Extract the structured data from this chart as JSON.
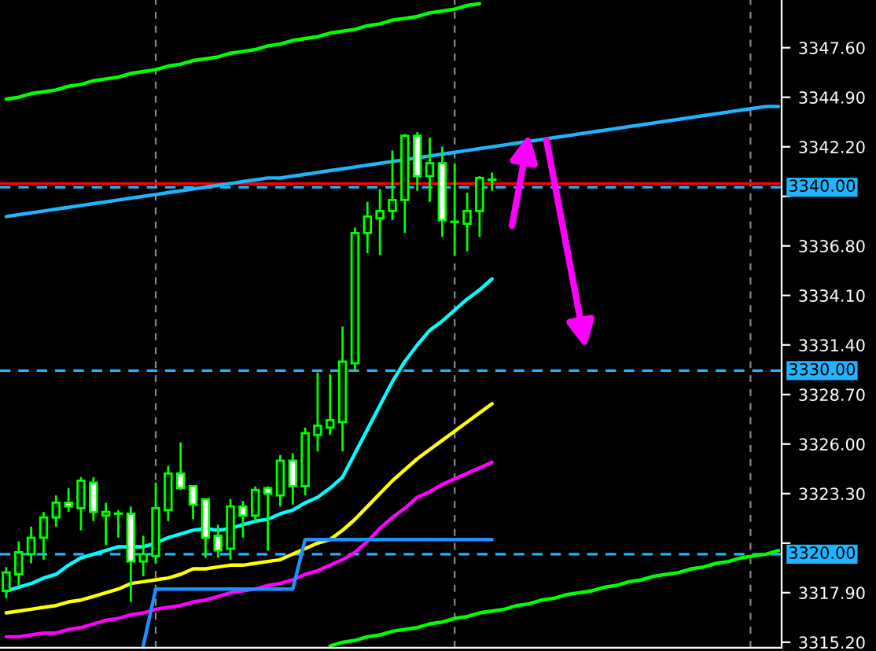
{
  "chart_data": {
    "type": "candlestick",
    "categories": [
      null,
      null,
      null,
      null,
      null,
      null,
      null,
      null,
      null,
      null,
      null,
      null,
      null,
      null,
      null,
      null,
      null,
      null,
      null,
      null,
      null,
      null,
      null,
      null,
      null,
      null,
      null,
      null,
      null,
      null,
      null,
      null,
      null,
      null,
      null,
      null,
      null,
      null,
      null,
      null,
      null,
      null,
      null,
      null,
      null,
      null,
      null,
      null,
      null,
      null,
      null,
      null,
      null,
      null,
      null,
      null,
      null,
      null,
      null,
      null,
      null,
      null,
      null
    ],
    "ohlc": [
      [
        3318.0,
        3319.3,
        3317.6,
        3319.0
      ],
      [
        3318.9,
        3320.7,
        3318.3,
        3320.1
      ],
      [
        3320.0,
        3321.5,
        3319.5,
        3320.9
      ],
      [
        3320.9,
        3322.3,
        3319.7,
        3322.0
      ],
      [
        3322.0,
        3323.2,
        3321.5,
        3322.8
      ],
      [
        3322.8,
        3323.6,
        3322.3,
        3322.6
      ],
      [
        3322.5,
        3324.2,
        3321.3,
        3324.0
      ],
      [
        3323.9,
        3324.2,
        3321.8,
        3322.3
      ],
      [
        3322.1,
        3322.8,
        3320.5,
        3322.3
      ],
      [
        3322.2,
        3322.4,
        3320.9,
        3322.2
      ],
      [
        3322.2,
        3322.6,
        3317.4,
        3319.6
      ],
      [
        3319.6,
        3321.0,
        3318.8,
        3320.0
      ],
      [
        3319.9,
        3323.9,
        3319.5,
        3322.5
      ],
      [
        3322.4,
        3324.8,
        3321.8,
        3324.4
      ],
      [
        3324.4,
        3326.1,
        3323.5,
        3323.6
      ],
      [
        3323.7,
        3323.7,
        3321.9,
        3322.7
      ],
      [
        3323.0,
        3323.0,
        3319.8,
        3320.9
      ],
      [
        3321.0,
        3321.6,
        3319.8,
        3320.2
      ],
      [
        3320.3,
        3323.0,
        3319.7,
        3322.6
      ],
      [
        3322.6,
        3322.9,
        3320.9,
        3322.1
      ],
      [
        3322.1,
        3323.7,
        3321.8,
        3323.5
      ],
      [
        3323.6,
        3323.7,
        3320.2,
        3323.3
      ],
      [
        3323.2,
        3325.4,
        3322.6,
        3325.1
      ],
      [
        3325.1,
        3325.5,
        3322.7,
        3323.7
      ],
      [
        3323.7,
        3326.9,
        3323.2,
        3326.6
      ],
      [
        3326.5,
        3329.9,
        3325.6,
        3327.0
      ],
      [
        3326.9,
        3329.8,
        3326.5,
        3327.3
      ],
      [
        3327.2,
        3332.4,
        3325.6,
        3330.5
      ],
      [
        3330.4,
        3337.8,
        3330.0,
        3337.5
      ],
      [
        3337.5,
        3339.2,
        3336.4,
        3338.4
      ],
      [
        3338.3,
        3339.9,
        3336.3,
        3338.7
      ],
      [
        3338.7,
        3342.0,
        3338.2,
        3339.3
      ],
      [
        3339.3,
        3342.9,
        3337.5,
        3342.8
      ],
      [
        3342.8,
        3343.0,
        3339.8,
        3340.6
      ],
      [
        3340.6,
        3342.7,
        3339.2,
        3341.3
      ],
      [
        3341.3,
        3342.2,
        3337.3,
        3338.2
      ],
      [
        3338.1,
        3341.3,
        3336.3,
        3338.1
      ],
      [
        3338.0,
        3339.7,
        3336.5,
        3338.7
      ],
      [
        3338.7,
        3340.6,
        3337.3,
        3340.5
      ],
      [
        3340.4,
        3340.8,
        3339.8,
        3340.4
      ],
      null,
      null,
      null,
      null,
      null,
      null,
      null,
      null,
      null,
      null,
      null,
      null,
      null,
      null,
      null,
      null,
      null,
      null,
      null,
      null,
      null,
      null,
      null
    ],
    "series": [
      {
        "type": "line",
        "color": "#00ff00",
        "values": [
          3344.8,
          3344.9,
          3345.1,
          3345.2,
          3345.3,
          3345.5,
          3345.6,
          3345.8,
          3345.9,
          3346.0,
          3346.2,
          3346.3,
          3346.4,
          3346.6,
          3346.7,
          3346.9,
          3347.0,
          3347.1,
          3347.3,
          3347.4,
          3347.5,
          3347.7,
          3347.8,
          3348.0,
          3348.1,
          3348.2,
          3348.4,
          3348.5,
          3348.6,
          3348.8,
          3348.9,
          3349.1,
          3349.2,
          3349.3,
          3349.5,
          3349.6,
          3349.7,
          3349.9,
          3350.0,
          null,
          null,
          null,
          null,
          null,
          null,
          null,
          null,
          null,
          null,
          null,
          null,
          null,
          null,
          null,
          null,
          null,
          null,
          null,
          null,
          null,
          null,
          null,
          null
        ]
      },
      {
        "type": "line",
        "color": "#1eb4ff",
        "values": [
          3338.4,
          3338.5,
          3338.6,
          3338.7,
          3338.8,
          3338.9,
          3339.0,
          3339.1,
          3339.2,
          3339.3,
          3339.4,
          3339.5,
          3339.6,
          3339.7,
          3339.8,
          3339.9,
          3340.0,
          3340.1,
          3340.2,
          3340.3,
          3340.4,
          3340.5,
          3340.5,
          3340.6,
          3340.7,
          3340.8,
          3340.9,
          3341.0,
          3341.1,
          3341.2,
          3341.3,
          3341.4,
          3341.5,
          3341.6,
          3341.7,
          3341.8,
          3341.9,
          3342.0,
          3342.1,
          3342.2,
          3342.3,
          3342.4,
          3342.5,
          3342.6,
          3342.7,
          3342.8,
          3342.9,
          3343.0,
          3343.1,
          3343.2,
          3343.3,
          3343.4,
          3343.5,
          3343.6,
          3343.7,
          3343.8,
          3343.9,
          3344.0,
          3344.1,
          3344.2,
          3344.3,
          3344.4,
          3344.4
        ]
      },
      {
        "type": "line",
        "color": "#00ff00",
        "values": [
          null,
          null,
          null,
          null,
          null,
          null,
          null,
          null,
          null,
          null,
          null,
          null,
          null,
          null,
          null,
          null,
          null,
          null,
          null,
          null,
          null,
          null,
          null,
          null,
          null,
          null,
          3315.0,
          3315.2,
          3315.3,
          3315.5,
          3315.6,
          3315.8,
          3315.9,
          3316.0,
          3316.2,
          3316.3,
          3316.5,
          3316.6,
          3316.8,
          3316.9,
          3317.0,
          3317.2,
          3317.3,
          3317.5,
          3317.6,
          3317.8,
          3317.9,
          3318.0,
          3318.2,
          3318.3,
          3318.5,
          3318.6,
          3318.8,
          3318.9,
          3319.0,
          3319.2,
          3319.3,
          3319.5,
          3319.6,
          3319.8,
          3319.9,
          3320.0,
          3320.2
        ]
      },
      {
        "type": "line",
        "color": "#00ffff",
        "values": [
          3318.0,
          3318.2,
          3318.4,
          3318.7,
          3318.9,
          3319.4,
          3319.8,
          3320.0,
          3320.2,
          3320.4,
          3320.4,
          3320.4,
          3320.6,
          3320.9,
          3321.1,
          3321.3,
          3321.4,
          3321.3,
          3321.4,
          3321.6,
          3321.8,
          3321.9,
          3322.2,
          3322.4,
          3322.8,
          3323.1,
          3323.6,
          3324.2,
          3325.5,
          3326.8,
          3328.1,
          3329.4,
          3330.5,
          3331.4,
          3332.2,
          3332.7,
          3333.3,
          3333.9,
          3334.4,
          3335.0,
          null,
          null,
          null,
          null,
          null,
          null,
          null,
          null,
          null,
          null,
          null,
          null,
          null,
          null,
          null,
          null,
          null,
          null,
          null,
          null,
          null,
          null,
          null
        ]
      },
      {
        "type": "line",
        "color": "#ffff00",
        "values": [
          3316.8,
          3316.9,
          3317.0,
          3317.1,
          3317.2,
          3317.4,
          3317.5,
          3317.7,
          3317.9,
          3318.1,
          3318.4,
          3318.5,
          3318.6,
          3318.7,
          3318.9,
          3319.2,
          3319.2,
          3319.3,
          3319.4,
          3319.4,
          3319.5,
          3319.6,
          3319.7,
          3320.0,
          3320.3,
          3320.6,
          3320.8,
          3321.3,
          3321.9,
          3322.6,
          3323.3,
          3324.0,
          3324.6,
          3325.2,
          3325.7,
          3326.2,
          3326.7,
          3327.2,
          3327.7,
          3328.2,
          null,
          null,
          null,
          null,
          null,
          null,
          null,
          null,
          null,
          null,
          null,
          null,
          null,
          null,
          null,
          null,
          null,
          null,
          null,
          null,
          null,
          null,
          null
        ]
      },
      {
        "type": "line",
        "color": "#ff00ff",
        "values": [
          3315.5,
          3315.5,
          3315.6,
          3315.7,
          3315.7,
          3315.9,
          3316.0,
          3316.2,
          3316.4,
          3316.5,
          3316.7,
          3316.8,
          3317.0,
          3317.1,
          3317.2,
          3317.4,
          3317.5,
          3317.7,
          3317.9,
          3318.0,
          3318.1,
          3318.3,
          3318.4,
          3318.6,
          3318.9,
          3319.1,
          3319.4,
          3319.7,
          3320.1,
          3320.7,
          3321.4,
          3322.0,
          3322.5,
          3323.1,
          3323.4,
          3323.8,
          3324.1,
          3324.4,
          3324.7,
          3325.0,
          null,
          null,
          null,
          null,
          null,
          null,
          null,
          null,
          null,
          null,
          null,
          null,
          null,
          null,
          null,
          null,
          null,
          null,
          null,
          null,
          null,
          null,
          null
        ]
      },
      {
        "type": "line",
        "color": "#1e90ff",
        "values": [
          null,
          null,
          null,
          null,
          null,
          null,
          null,
          null,
          null,
          null,
          null,
          3315.0,
          3318.1,
          3318.1,
          3318.1,
          3318.1,
          3318.1,
          3318.1,
          3318.1,
          3318.1,
          3318.1,
          3318.1,
          3318.1,
          3318.1,
          3320.8,
          3320.8,
          3320.8,
          3320.8,
          3320.8,
          3320.8,
          3320.8,
          3320.8,
          3320.8,
          3320.8,
          3320.8,
          3320.8,
          3320.8,
          3320.8,
          3320.8,
          3320.8,
          null,
          null,
          null,
          null,
          null,
          null,
          null,
          null,
          null,
          null,
          null,
          null,
          null,
          null,
          null,
          null,
          null,
          null,
          null,
          null,
          null,
          null,
          null
        ]
      }
    ],
    "ylim": [
      3314.9,
      3350.2
    ],
    "yticks": [
      {
        "value": 3315.2,
        "label": "3315.20"
      },
      {
        "value": 3317.9,
        "label": "3317.90"
      },
      {
        "value": 3320.6,
        "label": null
      },
      {
        "value": 3323.3,
        "label": "3323.30"
      },
      {
        "value": 3326.0,
        "label": "3326.00"
      },
      {
        "value": 3328.7,
        "label": "3328.70"
      },
      {
        "value": 3331.4,
        "label": "3331.40"
      },
      {
        "value": 3334.1,
        "label": "3334.10"
      },
      {
        "value": 3336.8,
        "label": "3336.80"
      },
      {
        "value": 3339.5,
        "label": null
      },
      {
        "value": 3342.2,
        "label": "3342.20"
      },
      {
        "value": 3344.9,
        "label": "3344.90"
      },
      {
        "value": 3347.6,
        "label": "3347.60"
      }
    ],
    "tick_labels": "y",
    "ref_lines": [
      {
        "axis": "y",
        "value": 3340.2,
        "color": "#ff0000",
        "line_style": "solid"
      },
      {
        "axis": "y",
        "value": 3340.0,
        "label": "3340.00",
        "color": "#1eb4ff",
        "line_style": "dashed"
      },
      {
        "axis": "y",
        "value": 3330.0,
        "label": "3330.00",
        "color": "#1eb4ff",
        "line_style": "dashed"
      },
      {
        "axis": "y",
        "value": 3320.0,
        "label": "3320.00",
        "color": "#1eb4ff",
        "line_style": "dashed"
      }
    ]
  }
}
